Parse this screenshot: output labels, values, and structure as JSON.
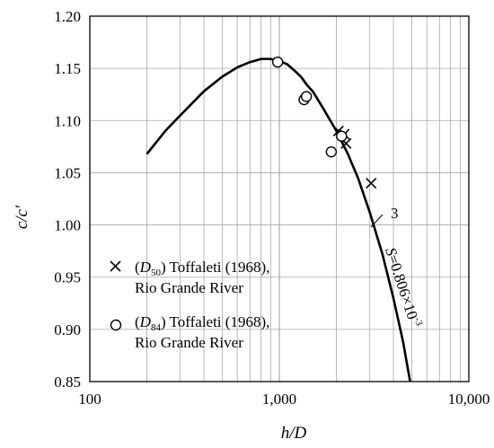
{
  "chart_data": {
    "type": "scatter",
    "xlabel": "h/D",
    "ylabel": "c/c′",
    "x_scale": "log",
    "xlim": [
      100,
      10000
    ],
    "ylim": [
      0.85,
      1.2
    ],
    "x_ticks": [
      100,
      1000,
      10000
    ],
    "x_tick_labels": [
      "100",
      "1,000",
      "10,000"
    ],
    "y_ticks": [
      0.85,
      0.9,
      0.95,
      1.0,
      1.05,
      1.1,
      1.15,
      1.2
    ],
    "y_tick_labels": [
      "0.85",
      "0.90",
      "0.95",
      "1.00",
      "1.05",
      "1.10",
      "1.15",
      "1.20"
    ],
    "grid": true,
    "legend_position": "lower-left",
    "series": [
      {
        "name": "(D50) Toffaleti (1968), Rio Grande River",
        "legend_lines": [
          "(",
          "D",
          "50",
          ")  Toffaleti (1968),",
          "Rio Grande River"
        ],
        "marker": "x",
        "points": [
          [
            2050,
            1.09
          ],
          [
            2200,
            1.087
          ],
          [
            2250,
            1.078
          ],
          [
            3050,
            1.04
          ]
        ]
      },
      {
        "name": "(D84) Toffaleti (1968), Rio Grande River",
        "legend_lines": [
          "(",
          "D",
          "84",
          ")  Toffaleti (1968),",
          "Rio Grande River"
        ],
        "marker": "circle",
        "points": [
          [
            980,
            1.156
          ],
          [
            1350,
            1.12
          ],
          [
            1390,
            1.123
          ],
          [
            1880,
            1.07
          ],
          [
            2130,
            1.085
          ]
        ]
      },
      {
        "name": "curve 3",
        "marker": "line",
        "curve": [
          [
            200,
            1.068
          ],
          [
            250,
            1.09
          ],
          [
            300,
            1.105
          ],
          [
            400,
            1.128
          ],
          [
            500,
            1.142
          ],
          [
            600,
            1.151
          ],
          [
            700,
            1.156
          ],
          [
            800,
            1.159
          ],
          [
            900,
            1.159
          ],
          [
            1000,
            1.157
          ],
          [
            1100,
            1.154
          ],
          [
            1200,
            1.148
          ],
          [
            1300,
            1.142
          ],
          [
            1400,
            1.134
          ],
          [
            1500,
            1.128
          ],
          [
            1700,
            1.112
          ],
          [
            2000,
            1.09
          ],
          [
            2300,
            1.068
          ],
          [
            2600,
            1.045
          ],
          [
            3000,
            1.012
          ],
          [
            3500,
            0.972
          ],
          [
            4000,
            0.93
          ],
          [
            4500,
            0.888
          ],
          [
            4900,
            0.85
          ]
        ]
      }
    ],
    "annotations": {
      "curve_label": "3",
      "slope_prefix": "S",
      "slope_text": "=0.806×10",
      "slope_exp": "-3"
    }
  }
}
